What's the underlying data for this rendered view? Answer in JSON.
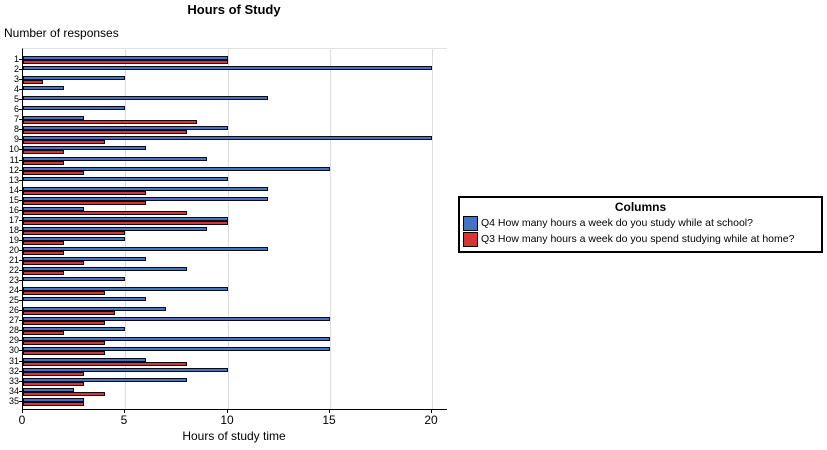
{
  "title": "Hours of Study",
  "y_axis_label": "Number of responses",
  "x_axis_label": "Hours of study time",
  "legend": {
    "title": "Columns",
    "items": [
      {
        "label": "Q4 How many hours a week do you study while at school?",
        "color": "#4573c4"
      },
      {
        "label": "Q3 How many hours a week do you spend studying while at home?",
        "color": "#d43535"
      }
    ]
  },
  "colors": {
    "q4_blue": "#4573c4",
    "q3_red": "#d43535",
    "bar_border": "#0a0a14",
    "gridline": "#dcdcdc"
  },
  "chart_data": {
    "type": "bar",
    "orientation": "horizontal",
    "title": "Hours of Study",
    "xlabel": "Hours of study time",
    "ylabel": "Number of responses",
    "xlim": [
      0,
      20
    ],
    "x_ticks": [
      0,
      5,
      10,
      15,
      20
    ],
    "grid": true,
    "legend_position": "right",
    "categories": [
      "1",
      "2",
      "3",
      "4",
      "5",
      "6",
      "7",
      "8",
      "9",
      "10",
      "11",
      "12",
      "13",
      "14",
      "15",
      "16",
      "17",
      "18",
      "19",
      "20",
      "21",
      "22",
      "23",
      "24",
      "25",
      "26",
      "27",
      "28",
      "29",
      "30",
      "31",
      "32",
      "33",
      "34",
      "35"
    ],
    "series": [
      {
        "name": "Q4 How many hours a week do you study while at school?",
        "color": "#4573c4",
        "values": [
          10,
          20,
          5,
          2,
          12,
          5,
          3,
          10,
          20,
          6,
          9,
          15,
          10,
          12,
          12,
          3,
          10,
          9,
          5,
          12,
          6,
          8,
          5,
          10,
          6,
          7,
          15,
          5,
          15,
          15,
          6,
          10,
          8,
          2.5,
          3
        ]
      },
      {
        "name": "Q3 How many hours a week do you spend studying while at home?",
        "color": "#d43535",
        "values": [
          10,
          null,
          1,
          null,
          null,
          null,
          8.5,
          8,
          4,
          2,
          2,
          3,
          null,
          6,
          6,
          8,
          10,
          5,
          2,
          2,
          3,
          2,
          null,
          4,
          null,
          4.5,
          4,
          2,
          4,
          4,
          8,
          3,
          3,
          4,
          3
        ]
      }
    ]
  }
}
